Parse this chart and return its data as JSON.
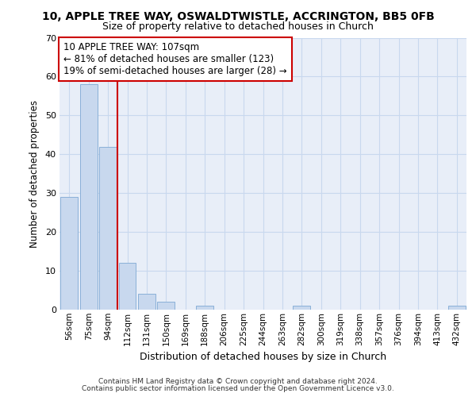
{
  "title1": "10, APPLE TREE WAY, OSWALDTWISTLE, ACCRINGTON, BB5 0FB",
  "title2": "Size of property relative to detached houses in Church",
  "xlabel": "Distribution of detached houses by size in Church",
  "ylabel": "Number of detached properties",
  "categories": [
    "56sqm",
    "75sqm",
    "94sqm",
    "112sqm",
    "131sqm",
    "150sqm",
    "169sqm",
    "188sqm",
    "206sqm",
    "225sqm",
    "244sqm",
    "263sqm",
    "282sqm",
    "300sqm",
    "319sqm",
    "338sqm",
    "357sqm",
    "376sqm",
    "394sqm",
    "413sqm",
    "432sqm"
  ],
  "values": [
    29,
    58,
    42,
    12,
    4,
    2,
    0,
    1,
    0,
    0,
    0,
    0,
    1,
    0,
    0,
    0,
    0,
    0,
    0,
    0,
    1
  ],
  "bar_color": "#c8d8ee",
  "bar_edge_color": "#8ab0d8",
  "grid_color": "#c8d8ee",
  "background_color": "#e8eef8",
  "red_line_x": 2.5,
  "annotation_text_line1": "10 APPLE TREE WAY: 107sqm",
  "annotation_text_line2": "← 81% of detached houses are smaller (123)",
  "annotation_text_line3": "19% of semi-detached houses are larger (28) →",
  "annotation_box_color": "#ffffff",
  "annotation_border_color": "#cc0000",
  "ylim": [
    0,
    70
  ],
  "yticks": [
    0,
    10,
    20,
    30,
    40,
    50,
    60,
    70
  ],
  "footer1": "Contains HM Land Registry data © Crown copyright and database right 2024.",
  "footer2": "Contains public sector information licensed under the Open Government Licence v3.0."
}
